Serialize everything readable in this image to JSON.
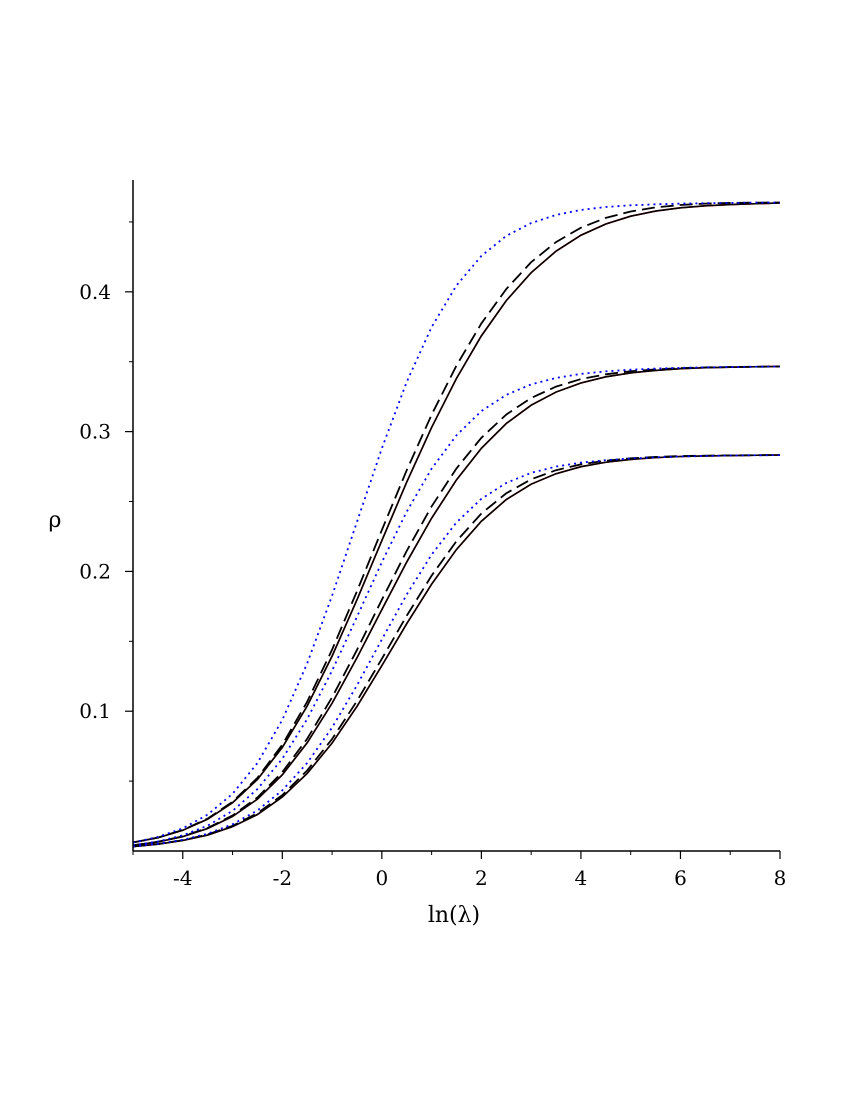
{
  "chart_data": {
    "type": "line",
    "title": "",
    "xlabel": "ln(λ)",
    "ylabel": "ρ",
    "xlim": [
      -5,
      8
    ],
    "ylim": [
      0,
      0.48
    ],
    "grid": false,
    "legend": "none",
    "x_ticks": [
      -4,
      -2,
      0,
      2,
      4,
      6,
      8
    ],
    "x_tick_labels": [
      "-4",
      "-2",
      "0",
      "2",
      "4",
      "6",
      "8"
    ],
    "y_ticks": [
      0.1,
      0.2,
      0.3,
      0.4
    ],
    "y_tick_labels": [
      "0.1",
      "0.2",
      "0.3",
      "0.4"
    ],
    "x": [
      -5,
      -4.5,
      -4,
      -3.5,
      -3,
      -2.5,
      -2,
      -1.5,
      -1,
      -0.5,
      0,
      0.5,
      1,
      1.5,
      2,
      2.5,
      3,
      3.5,
      4,
      4.5,
      5,
      5.5,
      6,
      6.5,
      7,
      7.5,
      8
    ],
    "series": [
      {
        "style": "solid",
        "color": "#ff0000",
        "values": [
          0.0061,
          0.0095,
          0.0148,
          0.0228,
          0.0345,
          0.0512,
          0.0741,
          0.1037,
          0.1394,
          0.1797,
          0.2221,
          0.2639,
          0.303,
          0.3381,
          0.3685,
          0.3937,
          0.4137,
          0.4291,
          0.4405,
          0.4485,
          0.4541,
          0.4578,
          0.4601,
          0.4615,
          0.4624,
          0.463,
          0.4636
        ]
      },
      {
        "style": "solid",
        "color": "#000000",
        "values": [
          0.0061,
          0.0095,
          0.0148,
          0.0228,
          0.0345,
          0.0512,
          0.0741,
          0.1037,
          0.1394,
          0.1797,
          0.2221,
          0.2639,
          0.303,
          0.3381,
          0.3685,
          0.3937,
          0.4137,
          0.4291,
          0.4405,
          0.4485,
          0.4541,
          0.4578,
          0.4601,
          0.4615,
          0.4624,
          0.463,
          0.4636
        ]
      },
      {
        "style": "dash",
        "color": "#000000",
        "values": [
          0.0061,
          0.0096,
          0.015,
          0.0232,
          0.0352,
          0.0523,
          0.076,
          0.1068,
          0.144,
          0.1858,
          0.2296,
          0.2724,
          0.3121,
          0.3473,
          0.3774,
          0.402,
          0.4212,
          0.4356,
          0.4459,
          0.4529,
          0.4575,
          0.4604,
          0.4621,
          0.4631,
          0.4636,
          0.4638,
          0.4639
        ]
      },
      {
        "style": "dot",
        "color": "#0000ff",
        "values": [
          0.0061,
          0.01,
          0.0162,
          0.026,
          0.0409,
          0.0629,
          0.0938,
          0.1342,
          0.1826,
          0.2354,
          0.288,
          0.3356,
          0.3748,
          0.4046,
          0.4257,
          0.44,
          0.4492,
          0.455,
          0.4586,
          0.4607,
          0.4619,
          0.4626,
          0.4631,
          0.4634,
          0.4636,
          0.4638,
          0.4639
        ]
      },
      {
        "style": "solid",
        "color": "#ff0000",
        "values": [
          0.0041,
          0.0065,
          0.0103,
          0.0161,
          0.0247,
          0.0371,
          0.0545,
          0.0774,
          0.1057,
          0.1382,
          0.1727,
          0.2067,
          0.2381,
          0.2655,
          0.2881,
          0.3058,
          0.3189,
          0.3283,
          0.3348,
          0.3392,
          0.342,
          0.3438,
          0.345,
          0.3457,
          0.3461,
          0.3464,
          0.3466
        ]
      },
      {
        "style": "solid",
        "color": "#000000",
        "values": [
          0.0041,
          0.0065,
          0.0103,
          0.0161,
          0.0247,
          0.0371,
          0.0545,
          0.0774,
          0.1057,
          0.1382,
          0.1727,
          0.2067,
          0.2381,
          0.2655,
          0.2881,
          0.3058,
          0.3189,
          0.3283,
          0.3348,
          0.3392,
          0.342,
          0.3438,
          0.345,
          0.3457,
          0.3461,
          0.3464,
          0.3466
        ]
      },
      {
        "style": "dash",
        "color": "#000000",
        "values": [
          0.0041,
          0.0066,
          0.0105,
          0.0165,
          0.0254,
          0.0383,
          0.0564,
          0.0803,
          0.1099,
          0.1438,
          0.1797,
          0.2147,
          0.2465,
          0.2737,
          0.2956,
          0.3122,
          0.3241,
          0.3322,
          0.3376,
          0.341,
          0.3432,
          0.3445,
          0.3454,
          0.3459,
          0.3462,
          0.3464,
          0.3466
        ]
      },
      {
        "style": "dot",
        "color": "#0000ff",
        "values": [
          0.0041,
          0.0068,
          0.0112,
          0.0181,
          0.0287,
          0.0443,
          0.066,
          0.0944,
          0.129,
          0.1675,
          0.2066,
          0.2428,
          0.2735,
          0.2974,
          0.3147,
          0.3263,
          0.3338,
          0.3384,
          0.3413,
          0.3431,
          0.3443,
          0.3451,
          0.3456,
          0.346,
          0.3462,
          0.3464,
          0.3466
        ]
      },
      {
        "style": "solid",
        "color": "#ff0000",
        "values": [
          0.0032,
          0.0049,
          0.0075,
          0.0114,
          0.0174,
          0.0261,
          0.0386,
          0.0555,
          0.0772,
          0.1034,
          0.1326,
          0.1626,
          0.1909,
          0.2157,
          0.2359,
          0.2514,
          0.2624,
          0.2699,
          0.2749,
          0.2781,
          0.2801,
          0.2814,
          0.2822,
          0.2826,
          0.2829,
          0.2831,
          0.2832
        ]
      },
      {
        "style": "solid",
        "color": "#000000",
        "values": [
          0.0032,
          0.0049,
          0.0075,
          0.0114,
          0.0174,
          0.0261,
          0.0386,
          0.0555,
          0.0772,
          0.1034,
          0.1326,
          0.1626,
          0.1909,
          0.2157,
          0.2359,
          0.2514,
          0.2624,
          0.2699,
          0.2749,
          0.2781,
          0.2801,
          0.2814,
          0.2822,
          0.2826,
          0.2829,
          0.2831,
          0.2832
        ]
      },
      {
        "style": "dash",
        "color": "#000000",
        "values": [
          0.0032,
          0.005,
          0.0077,
          0.0118,
          0.018,
          0.027,
          0.04,
          0.0576,
          0.0801,
          0.1073,
          0.1375,
          0.1683,
          0.197,
          0.2217,
          0.2414,
          0.2559,
          0.2659,
          0.2724,
          0.2766,
          0.2792,
          0.2809,
          0.2819,
          0.2825,
          0.2828,
          0.283,
          0.2831,
          0.2832
        ]
      },
      {
        "style": "dot",
        "color": "#0000ff",
        "values": [
          0.0032,
          0.0051,
          0.008,
          0.0124,
          0.0191,
          0.029,
          0.0434,
          0.063,
          0.0883,
          0.1185,
          0.1513,
          0.1835,
          0.212,
          0.2351,
          0.2519,
          0.2633,
          0.2705,
          0.275,
          0.2778,
          0.2796,
          0.2808,
          0.2816,
          0.2822,
          0.2826,
          0.2829,
          0.2831,
          0.2832
        ]
      }
    ]
  }
}
